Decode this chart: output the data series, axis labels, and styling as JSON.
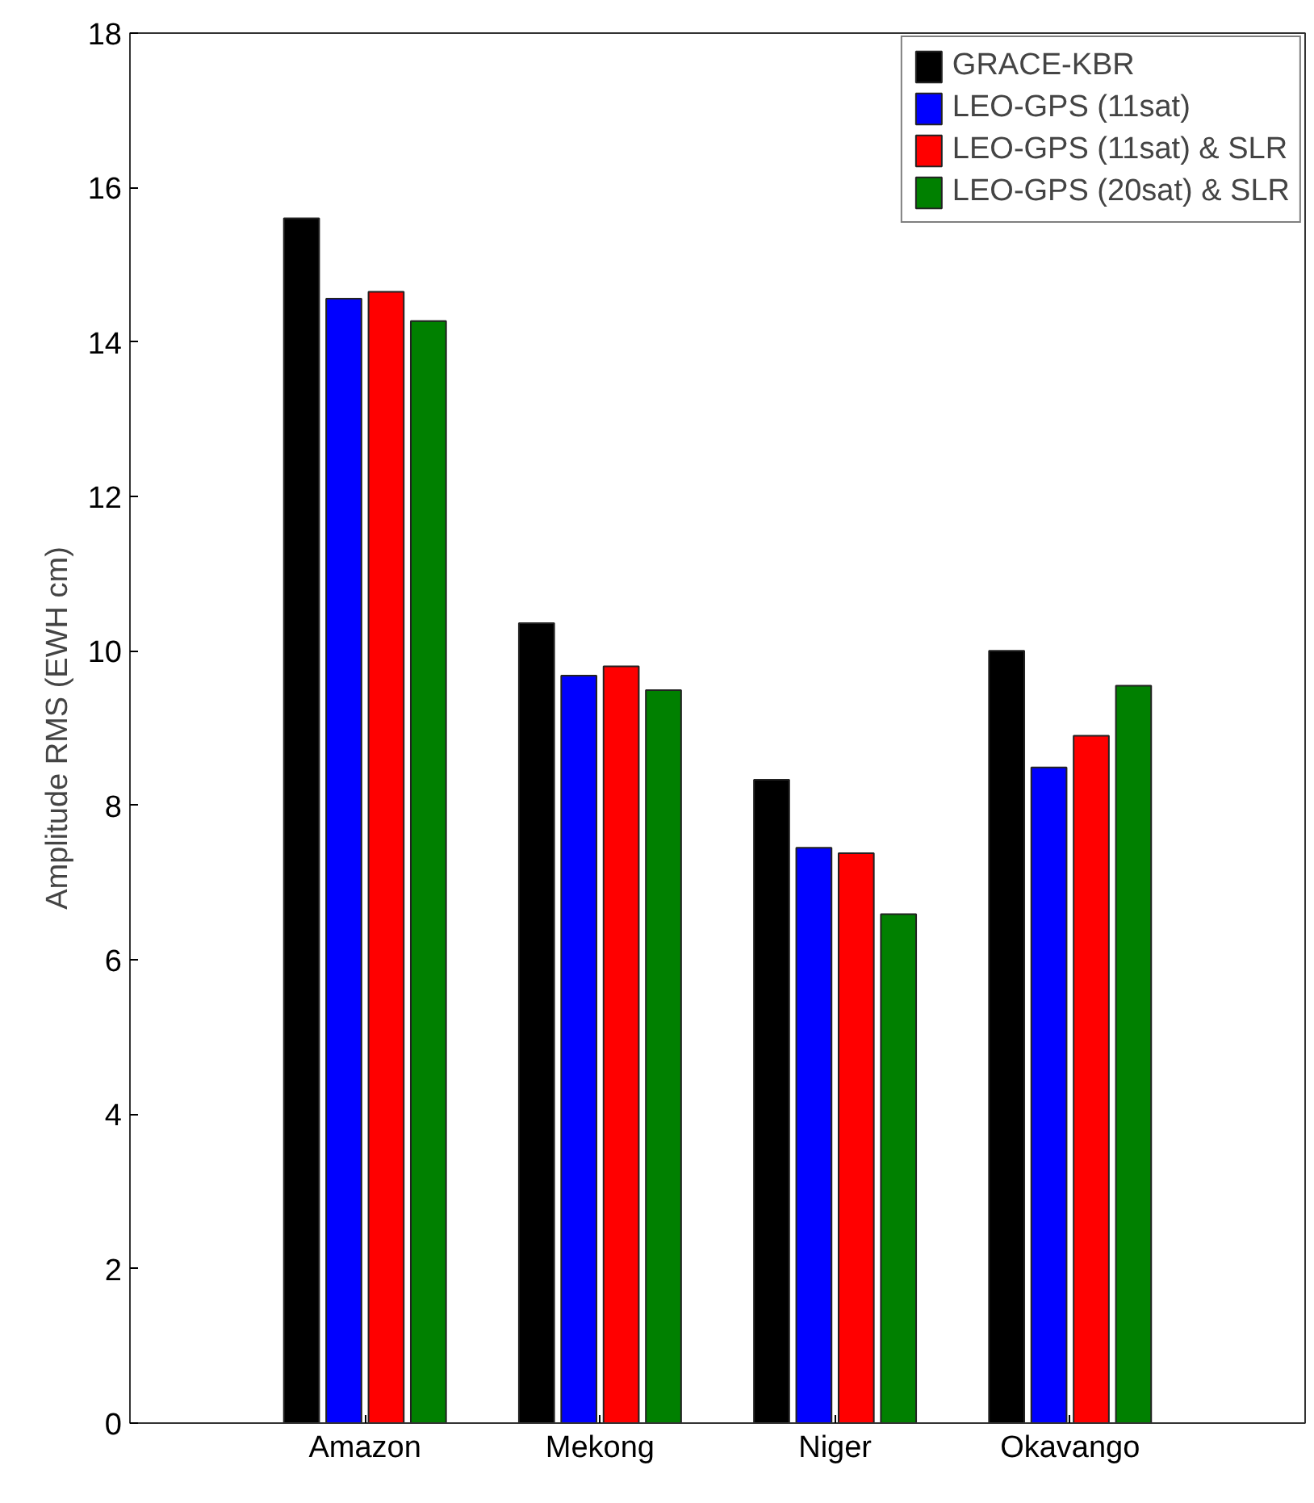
{
  "chart_data": {
    "type": "bar",
    "ylabel": "Amplitude RMS (EWH cm)",
    "categories": [
      "Amazon",
      "Mekong",
      "Niger",
      "Okavango"
    ],
    "series": [
      {
        "name": "GRACE-KBR",
        "color": "#000000",
        "values": [
          15.6,
          10.36,
          8.33,
          10.0
        ]
      },
      {
        "name": "LEO-GPS (11sat)",
        "color": "#0000ff",
        "values": [
          14.56,
          9.68,
          7.45,
          8.49
        ]
      },
      {
        "name": "LEO-GPS (11sat) & SLR",
        "color": "#ff0000",
        "values": [
          14.65,
          9.8,
          7.38,
          8.9
        ]
      },
      {
        "name": "LEO-GPS (20sat) & SLR",
        "color": "#008000",
        "values": [
          14.27,
          9.49,
          6.59,
          9.55
        ]
      }
    ],
    "ylim": [
      0,
      18
    ],
    "yticks": [
      0,
      2,
      4,
      6,
      8,
      10,
      12,
      14,
      16,
      18
    ],
    "grid": false,
    "legend": "top right"
  }
}
